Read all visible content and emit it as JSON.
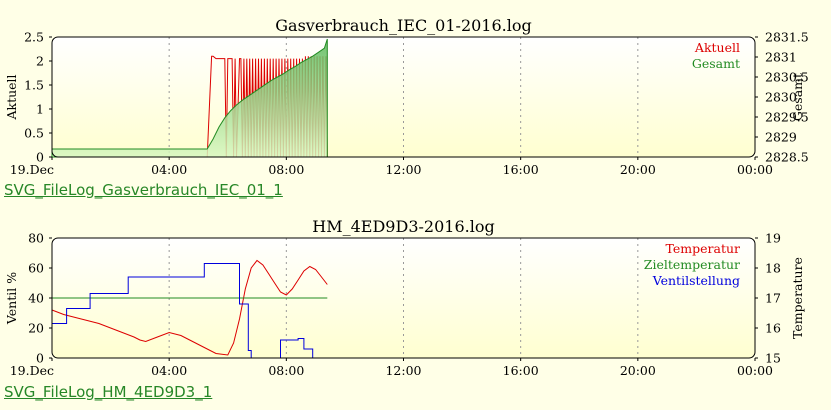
{
  "chart_data": [
    {
      "type": "line",
      "title": "Gasverbrauch_IEC_01-2016.log",
      "ylabel": "Aktuell",
      "y2label": "Gesamt",
      "ylim": [
        0,
        2.5
      ],
      "y2lim": [
        2828.5,
        2831.5
      ],
      "yticks": [
        "0",
        "0.5",
        "1",
        "1.5",
        "2",
        "2.5"
      ],
      "y2ticks": [
        "2828.5",
        "2829",
        "2829.5",
        "2830",
        "2830.5",
        "2831",
        "2831.5"
      ],
      "xlim": [
        0,
        24
      ],
      "xticks": [
        "19.Dec",
        "04:00",
        "08:00",
        "12:00",
        "16:00",
        "20:00",
        "00:00"
      ],
      "grid": "vertical-dotted",
      "legend_position": "top-right",
      "series": [
        {
          "name": "Aktuell",
          "axis": "left",
          "style": "line",
          "color": "#DD0000",
          "x": [
            0,
            5.3,
            5.45,
            5.5,
            5.6,
            5.65,
            5.9,
            5.95,
            6.0,
            6.05,
            6.15,
            6.2,
            6.25,
            6.3,
            6.4,
            6.45,
            6.5,
            6.55,
            6.6,
            6.65,
            6.7,
            6.75,
            6.8,
            6.85,
            6.9,
            6.95,
            7.0,
            7.05,
            7.1,
            7.15,
            7.2,
            7.25,
            7.3,
            7.35,
            7.4,
            7.45,
            7.5,
            7.55,
            7.6,
            7.65,
            7.7,
            7.75,
            7.8,
            7.85,
            7.9,
            7.95,
            8.0,
            8.05,
            8.1,
            8.15,
            8.2,
            8.25,
            8.3,
            8.35,
            8.4,
            8.45,
            8.5,
            8.55,
            8.6,
            8.65,
            8.7,
            8.75,
            8.8,
            8.85,
            8.9,
            8.95,
            9.0,
            9.05,
            9.1,
            9.15,
            9.2,
            9.25,
            9.3,
            9.35,
            9.4
          ],
          "y": [
            0,
            0,
            2.1,
            2.1,
            2.05,
            2.05,
            2.05,
            0,
            2.05,
            2.05,
            2.05,
            0,
            2.05,
            0,
            2.05,
            2.05,
            0,
            2.05,
            0,
            2.05,
            0,
            2.05,
            0,
            2.05,
            0,
            2.05,
            0,
            2.05,
            0,
            2.05,
            0,
            2.05,
            0,
            2.05,
            0,
            2.05,
            0,
            2.05,
            0,
            2.05,
            0,
            2.05,
            0,
            2.05,
            0,
            2.05,
            0,
            2.05,
            0,
            2.05,
            0,
            2.05,
            0,
            2.05,
            0,
            2.05,
            0,
            2.05,
            0,
            2.1,
            0,
            2.1,
            0,
            2.1,
            0,
            2.1,
            0,
            2.1,
            0,
            2.1,
            0,
            2.1,
            0,
            2.1,
            0
          ]
        },
        {
          "name": "Gesamt",
          "axis": "right",
          "style": "area",
          "color": "#228B22",
          "x": [
            0,
            5.3,
            5.5,
            5.7,
            5.9,
            6.1,
            6.3,
            6.5,
            6.7,
            6.9,
            7.1,
            7.3,
            7.5,
            7.7,
            7.9,
            8.1,
            8.3,
            8.5,
            8.7,
            8.9,
            9.1,
            9.3,
            9.4
          ],
          "y": [
            2828.7,
            2828.7,
            2828.95,
            2829.25,
            2829.48,
            2829.66,
            2829.8,
            2829.92,
            2830.02,
            2830.12,
            2830.22,
            2830.32,
            2830.42,
            2830.5,
            2830.58,
            2830.68,
            2830.76,
            2830.86,
            2830.94,
            2831.02,
            2831.12,
            2831.22,
            2831.45
          ]
        }
      ]
    },
    {
      "type": "line",
      "title": "HM_4ED9D3-2016.log",
      "ylabel": "Ventil %",
      "y2label": "Temperature",
      "ylim": [
        0,
        80
      ],
      "y2lim": [
        15,
        19
      ],
      "yticks": [
        "0",
        "20",
        "40",
        "60",
        "80"
      ],
      "y2ticks": [
        "15",
        "16",
        "17",
        "18",
        "19"
      ],
      "xlim": [
        0,
        24
      ],
      "xticks": [
        "19.Dec",
        "04:00",
        "08:00",
        "12:00",
        "16:00",
        "20:00",
        "00:00"
      ],
      "grid": "vertical-dotted",
      "legend_position": "top-right",
      "series": [
        {
          "name": "Temperatur",
          "axis": "right",
          "style": "line",
          "color": "#DD0000",
          "x": [
            0,
            0.4,
            0.8,
            1.2,
            1.6,
            2.0,
            2.4,
            2.8,
            3.0,
            3.2,
            3.6,
            4.0,
            4.4,
            4.8,
            5.2,
            5.6,
            6.0,
            6.2,
            6.4,
            6.6,
            6.8,
            7.0,
            7.2,
            7.4,
            7.6,
            7.8,
            8.0,
            8.2,
            8.4,
            8.6,
            8.8,
            9.0,
            9.2,
            9.4
          ],
          "y": [
            16.6,
            16.45,
            16.35,
            16.25,
            16.15,
            16.0,
            15.85,
            15.7,
            15.6,
            15.55,
            15.7,
            15.85,
            15.75,
            15.55,
            15.35,
            15.15,
            15.1,
            15.5,
            16.3,
            17.3,
            18.0,
            18.25,
            18.1,
            17.8,
            17.5,
            17.2,
            17.1,
            17.3,
            17.6,
            17.9,
            18.05,
            17.95,
            17.7,
            17.45
          ]
        },
        {
          "name": "Zieltemperatur",
          "axis": "right",
          "style": "line",
          "color": "#228B22",
          "x": [
            0,
            9.4
          ],
          "y": [
            17.0,
            17.0
          ]
        },
        {
          "name": "Ventilstellung",
          "axis": "left",
          "style": "step",
          "color": "#0000DD",
          "x": [
            0,
            0.5,
            1.3,
            2.6,
            5.2,
            6.4,
            6.7,
            6.8,
            7.0,
            7.8,
            8.4,
            8.6,
            8.9,
            9.4
          ],
          "y": [
            23,
            33,
            43,
            54,
            63,
            36,
            5,
            0,
            0,
            12,
            13,
            6,
            0,
            0
          ]
        }
      ]
    }
  ],
  "links": [
    {
      "label": "SVG_FileLog_Gasverbrauch_IEC_01_1"
    },
    {
      "label": "SVG_FileLog_HM_4ED9D3_1"
    }
  ]
}
